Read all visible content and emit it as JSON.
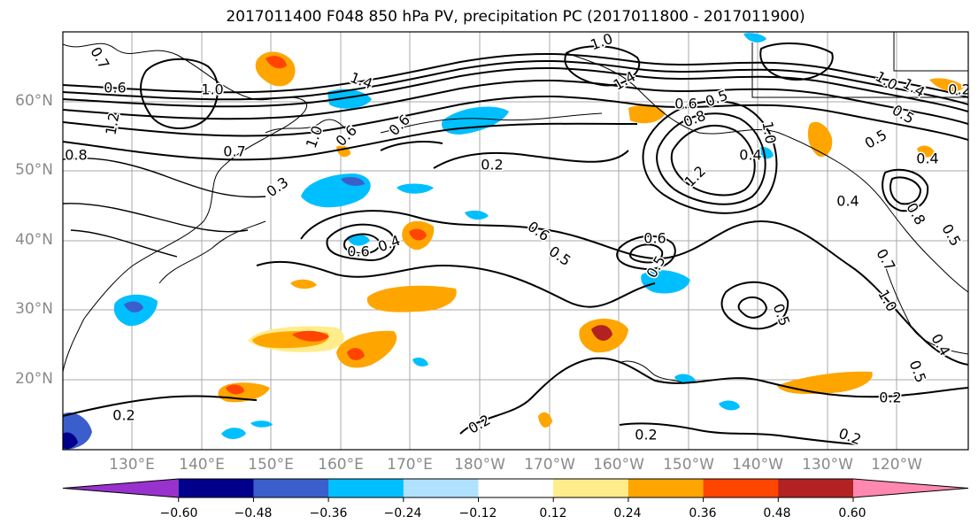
{
  "title": "2017011400 F048 850 hPa PV, precipitation PC (2017011800 - 2017011900)",
  "lat_labels": [
    "60°N",
    "50°N",
    "40°N",
    "30°N",
    "20°N"
  ],
  "lon_labels": [
    "130°E",
    "140°E",
    "150°E",
    "160°E",
    "170°E",
    "180°W",
    "170°W",
    "160°W",
    "150°W",
    "140°W",
    "130°W",
    "120°W"
  ],
  "contour_labels": [
    "0.7",
    "0.6",
    "1.2",
    "0.8",
    "1.0",
    "1.4",
    "1.0",
    "1.4",
    "0.6",
    "0.7",
    "0.3",
    "1.0",
    "0.6",
    "0.4",
    "0.2",
    "0.6",
    "0.5",
    "0.6",
    "0.5",
    "0.6",
    "0.6",
    "0.5",
    "0.2",
    "0.2",
    "0.2",
    "0.2",
    "0.8",
    "1.2",
    "0.5",
    "1.0",
    "0.4",
    "0.4",
    "0.5",
    "0.4",
    "1.0",
    "1.4",
    "0.5",
    "0.8",
    "0.7",
    "1.0",
    "0.4",
    "0.5",
    "0.2",
    "0.5",
    "0.2"
  ],
  "colorbar": {
    "colors": [
      "#9932cc",
      "#00008b",
      "#3a5fcd",
      "#00bfff",
      "#b0e2ff",
      "#ffffff",
      "#ffec8b",
      "#ffa500",
      "#ff4500",
      "#b22222",
      "#ff88b0"
    ],
    "ticks": [
      "−0.60",
      "−0.48",
      "−0.36",
      "−0.24",
      "−0.12",
      "0.12",
      "0.24",
      "0.36",
      "0.48",
      "0.60"
    ]
  },
  "colors": {
    "contour": "#000000",
    "grid": "#aaaaaa",
    "axis_label": "#8a8a8a"
  }
}
